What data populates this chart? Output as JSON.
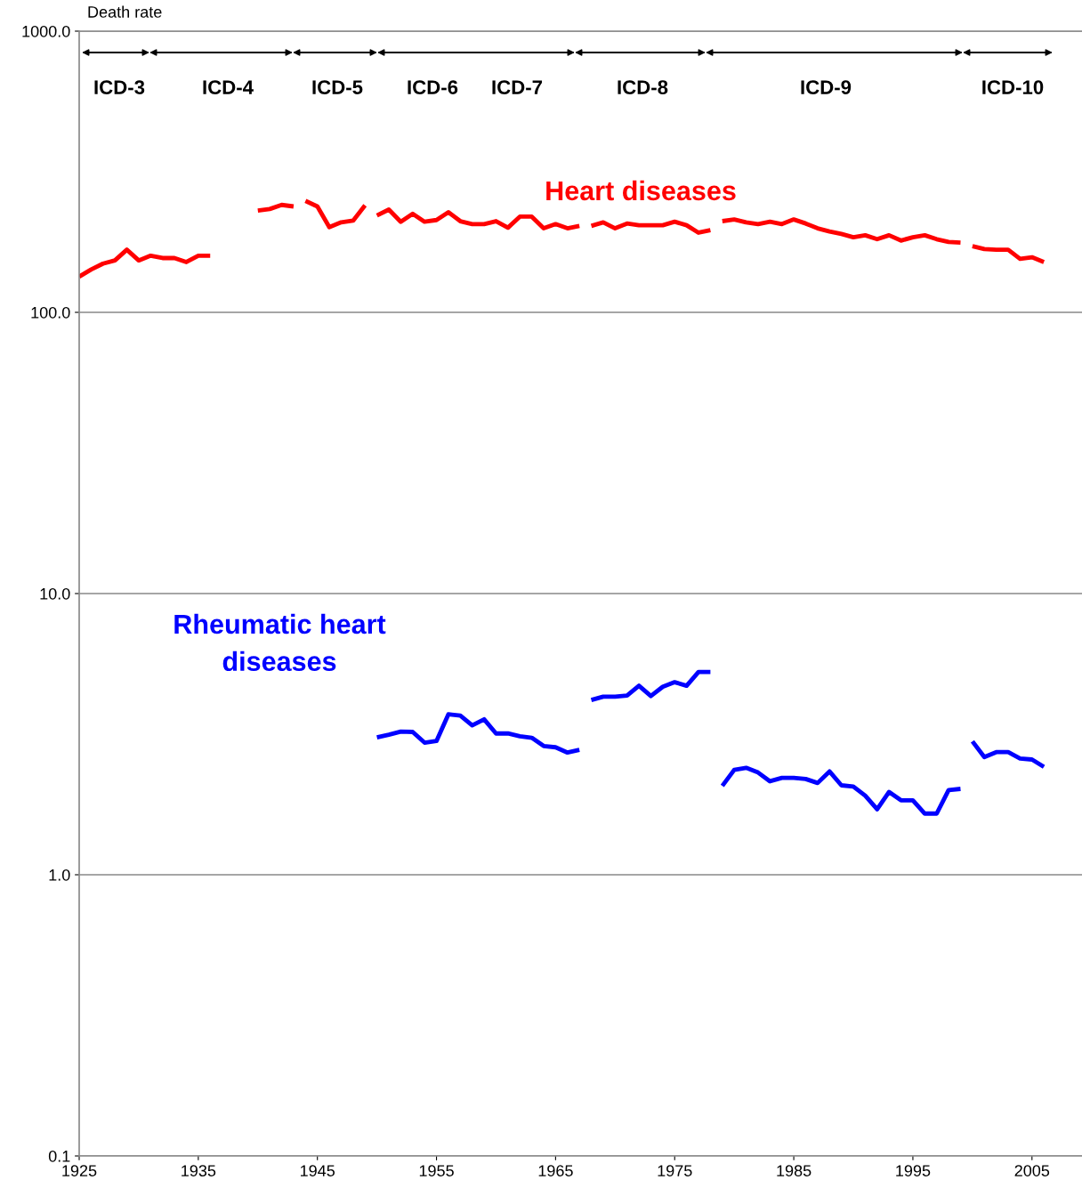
{
  "chart_data": {
    "type": "line",
    "ylabel": "Death rate",
    "log": "y",
    "grid": "y",
    "xlim": [
      1925,
      2009.2
    ],
    "xticks": [
      1925,
      1935,
      1945,
      1955,
      1965,
      1975,
      1985,
      1995,
      2005
    ],
    "ylim": [
      0.1,
      1000
    ],
    "yticks": [
      {
        "value": 0.1,
        "label": "0.1"
      },
      {
        "value": 1,
        "label": "1.0"
      },
      {
        "value": 10,
        "label": "10.0"
      },
      {
        "value": 100,
        "label": "100.0"
      },
      {
        "value": 1000,
        "label": "1000.0"
      }
    ],
    "series": [
      {
        "color": "#ff0000",
        "x": [
          1925,
          1926,
          1927,
          1928,
          1929,
          1930,
          1931,
          1932,
          1933,
          1934,
          1935,
          1936
        ],
        "values": [
          134,
          142,
          149,
          153,
          167,
          153,
          159,
          156,
          156,
          151,
          159,
          159
        ]
      },
      {
        "color": "#ff0000",
        "x": [
          1940,
          1941,
          1942,
          1943
        ],
        "values": [
          230,
          233,
          241,
          238
        ]
      },
      {
        "color": "#ff0000",
        "x": [
          1944,
          1945,
          1946,
          1947,
          1948,
          1949
        ],
        "values": [
          249,
          238,
          201,
          209,
          212,
          240
        ]
      },
      {
        "color": "#ff0000",
        "x": [
          1950,
          1951,
          1952,
          1953,
          1954,
          1955,
          1956,
          1957,
          1958,
          1959,
          1960,
          1961,
          1962,
          1963,
          1964,
          1965,
          1966,
          1967
        ],
        "values": [
          221,
          232,
          210,
          224,
          210,
          213,
          227,
          211,
          206,
          206,
          211,
          200,
          219,
          219,
          199,
          206,
          199,
          203
        ]
      },
      {
        "name": "Heart diseases",
        "color": "#ff0000",
        "x": [
          1968,
          1969,
          1970,
          1971,
          1972,
          1973,
          1974,
          1975,
          1976,
          1977,
          1978
        ],
        "values": [
          203,
          209,
          199,
          207,
          204,
          204,
          204,
          210,
          204,
          192,
          196
        ]
      },
      {
        "color": "#ff0000",
        "x": [
          1979,
          1980,
          1981,
          1982,
          1983,
          1984,
          1985,
          1986,
          1987,
          1988,
          1989,
          1990,
          1991,
          1992,
          1993,
          1994,
          1995,
          1996,
          1997,
          1998,
          1999
        ],
        "values": [
          211,
          214,
          209,
          206,
          210,
          206,
          214,
          207,
          199,
          194,
          190,
          185,
          188,
          182,
          188,
          180,
          185,
          188,
          182,
          178,
          177
        ]
      },
      {
        "color": "#ff0000",
        "x": [
          2000,
          2001,
          2002,
          2003,
          2004,
          2005,
          2006
        ],
        "values": [
          172,
          168,
          167,
          167,
          155,
          157,
          151
        ]
      },
      {
        "name": "Rheumatic heart\ndiseases",
        "color": "#0000ff",
        "x": [
          1950,
          1951,
          1952,
          1953,
          1954,
          1955,
          1956,
          1957,
          1958,
          1959,
          1960,
          1961,
          1962,
          1963,
          1964,
          1965,
          1966,
          1967
        ],
        "values": [
          3.08,
          3.15,
          3.23,
          3.22,
          2.95,
          2.99,
          3.72,
          3.68,
          3.4,
          3.57,
          3.18,
          3.18,
          3.11,
          3.07,
          2.87,
          2.84,
          2.72,
          2.78
        ]
      },
      {
        "color": "#0000ff",
        "x": [
          1968,
          1969,
          1970,
          1971,
          1972,
          1973,
          1974,
          1975,
          1976,
          1977,
          1978
        ],
        "values": [
          4.18,
          4.3,
          4.3,
          4.34,
          4.7,
          4.32,
          4.66,
          4.84,
          4.7,
          5.26,
          5.26
        ]
      },
      {
        "color": "#0000ff",
        "x": [
          1979,
          1980,
          1981,
          1982,
          1983,
          1984,
          1985,
          1986,
          1987,
          1988,
          1989,
          1990,
          1991,
          1992,
          1993,
          1994,
          1995,
          1996,
          1997,
          1998,
          1999
        ],
        "values": [
          2.07,
          2.36,
          2.4,
          2.31,
          2.15,
          2.21,
          2.21,
          2.19,
          2.12,
          2.33,
          2.08,
          2.06,
          1.91,
          1.71,
          1.97,
          1.84,
          1.84,
          1.65,
          1.65,
          2.0,
          2.02
        ]
      },
      {
        "color": "#0000ff",
        "x": [
          2000,
          2001,
          2002,
          2003,
          2004,
          2005,
          2006
        ],
        "values": [
          2.98,
          2.62,
          2.73,
          2.73,
          2.59,
          2.57,
          2.42
        ]
      }
    ],
    "annotations": [
      "ICD-3",
      "ICD-4",
      "ICD-5",
      "ICD-6",
      "ICD-7",
      "ICD-8",
      "ICD-9",
      "ICD-10"
    ]
  }
}
